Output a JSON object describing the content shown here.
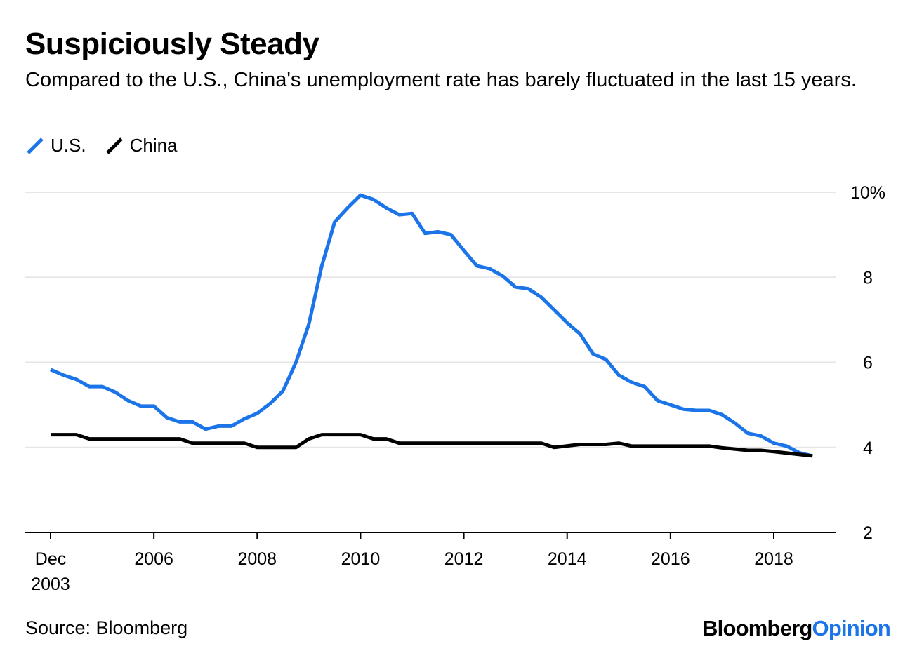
{
  "colors": {
    "us": "#1c75e8",
    "china": "#000000",
    "grid": "#e6e6e6",
    "axis": "#000000",
    "brand_accent": "#1c75e8"
  },
  "chart_data": {
    "type": "line",
    "title": "Suspiciously Steady",
    "subtitle": "Compared to the U.S., China's unemployment rate has barely fluctuated in the last 15 years.",
    "ylim": [
      2,
      10
    ],
    "yticks": [
      {
        "value": 2,
        "label": "2"
      },
      {
        "value": 4,
        "label": "4"
      },
      {
        "value": 6,
        "label": "6"
      },
      {
        "value": 8,
        "label": "8"
      },
      {
        "value": 10,
        "label": "10%"
      }
    ],
    "xlim": [
      2003.5,
      2019.25
    ],
    "xticks": [
      {
        "value": 2004.0,
        "label": "Dec",
        "label2": "2003"
      },
      {
        "value": 2006.0,
        "label": "2006"
      },
      {
        "value": 2008.0,
        "label": "2008"
      },
      {
        "value": 2010.0,
        "label": "2010"
      },
      {
        "value": 2012.0,
        "label": "2012"
      },
      {
        "value": 2014.0,
        "label": "2014"
      },
      {
        "value": 2016.0,
        "label": "2016"
      },
      {
        "value": 2018.0,
        "label": "2018"
      }
    ],
    "series": [
      {
        "name": "U.S.",
        "key": "us",
        "points": [
          [
            2004.0,
            5.83
          ],
          [
            2004.25,
            5.7
          ],
          [
            2004.5,
            5.6
          ],
          [
            2004.75,
            5.43
          ],
          [
            2005.0,
            5.43
          ],
          [
            2005.25,
            5.3
          ],
          [
            2005.5,
            5.1
          ],
          [
            2005.75,
            4.97
          ],
          [
            2006.0,
            4.97
          ],
          [
            2006.25,
            4.7
          ],
          [
            2006.5,
            4.6
          ],
          [
            2006.75,
            4.6
          ],
          [
            2007.0,
            4.43
          ],
          [
            2007.25,
            4.5
          ],
          [
            2007.5,
            4.5
          ],
          [
            2007.75,
            4.67
          ],
          [
            2008.0,
            4.8
          ],
          [
            2008.25,
            5.03
          ],
          [
            2008.5,
            5.33
          ],
          [
            2008.75,
            6.0
          ],
          [
            2009.0,
            6.9
          ],
          [
            2009.25,
            8.27
          ],
          [
            2009.5,
            9.3
          ],
          [
            2009.75,
            9.63
          ],
          [
            2010.0,
            9.93
          ],
          [
            2010.25,
            9.83
          ],
          [
            2010.5,
            9.63
          ],
          [
            2010.75,
            9.47
          ],
          [
            2011.0,
            9.5
          ],
          [
            2011.25,
            9.03
          ],
          [
            2011.5,
            9.07
          ],
          [
            2011.75,
            9.0
          ],
          [
            2012.0,
            8.63
          ],
          [
            2012.25,
            8.27
          ],
          [
            2012.5,
            8.2
          ],
          [
            2012.75,
            8.03
          ],
          [
            2013.0,
            7.77
          ],
          [
            2013.25,
            7.73
          ],
          [
            2013.5,
            7.53
          ],
          [
            2013.75,
            7.23
          ],
          [
            2014.0,
            6.93
          ],
          [
            2014.25,
            6.67
          ],
          [
            2014.5,
            6.2
          ],
          [
            2014.75,
            6.07
          ],
          [
            2015.0,
            5.7
          ],
          [
            2015.25,
            5.53
          ],
          [
            2015.5,
            5.43
          ],
          [
            2015.75,
            5.1
          ],
          [
            2016.0,
            5.0
          ],
          [
            2016.25,
            4.9
          ],
          [
            2016.5,
            4.87
          ],
          [
            2016.75,
            4.87
          ],
          [
            2017.0,
            4.77
          ],
          [
            2017.25,
            4.57
          ],
          [
            2017.5,
            4.33
          ],
          [
            2017.75,
            4.27
          ],
          [
            2018.0,
            4.1
          ],
          [
            2018.25,
            4.03
          ],
          [
            2018.5,
            3.87
          ],
          [
            2018.75,
            3.8
          ]
        ]
      },
      {
        "name": "China",
        "key": "china",
        "points": [
          [
            2004.0,
            4.3
          ],
          [
            2004.5,
            4.3
          ],
          [
            2004.75,
            4.2
          ],
          [
            2005.0,
            4.2
          ],
          [
            2006.5,
            4.2
          ],
          [
            2006.75,
            4.1
          ],
          [
            2007.75,
            4.1
          ],
          [
            2008.0,
            4.0
          ],
          [
            2008.75,
            4.0
          ],
          [
            2009.0,
            4.2
          ],
          [
            2009.25,
            4.3
          ],
          [
            2010.0,
            4.3
          ],
          [
            2010.25,
            4.2
          ],
          [
            2010.5,
            4.2
          ],
          [
            2010.75,
            4.1
          ],
          [
            2013.5,
            4.1
          ],
          [
            2013.75,
            4.0
          ],
          [
            2014.25,
            4.07
          ],
          [
            2014.75,
            4.07
          ],
          [
            2015.0,
            4.1
          ],
          [
            2015.25,
            4.03
          ],
          [
            2016.75,
            4.03
          ],
          [
            2017.0,
            3.99
          ],
          [
            2017.5,
            3.93
          ],
          [
            2017.75,
            3.93
          ],
          [
            2018.0,
            3.9
          ],
          [
            2018.75,
            3.8
          ]
        ]
      }
    ]
  },
  "legend": {
    "us_label": "U.S.",
    "china_label": "China"
  },
  "footer": {
    "source": "Source: Bloomberg",
    "brand_part1": "Bloomberg",
    "brand_part2": "Opinion"
  }
}
